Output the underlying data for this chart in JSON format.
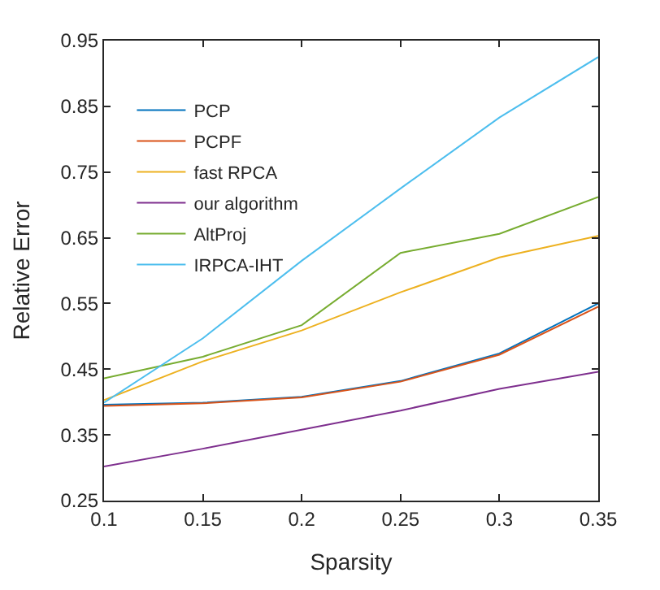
{
  "chart_data": {
    "type": "line",
    "xlabel": "Sparsity",
    "ylabel": "Relative Error",
    "x": [
      0.1,
      0.15,
      0.2,
      0.25,
      0.3,
      0.35
    ],
    "xlim": [
      0.1,
      0.35
    ],
    "xticks": [
      0.1,
      0.15,
      0.2,
      0.25,
      0.3,
      0.35
    ],
    "ylim": [
      0.25,
      0.95
    ],
    "yticks": [
      0.25,
      0.35,
      0.45,
      0.55,
      0.65,
      0.75,
      0.85,
      0.95
    ],
    "legend": "top left",
    "marker": "none",
    "line_style": "solid",
    "series": [
      {
        "name": "PCP",
        "color": "#0072bd",
        "values": [
          0.396,
          0.399,
          0.408,
          0.432,
          0.474,
          0.55
        ]
      },
      {
        "name": "PCPF",
        "color": "#d95319",
        "values": [
          0.394,
          0.398,
          0.407,
          0.431,
          0.472,
          0.545
        ]
      },
      {
        "name": "fast RPCA",
        "color": "#edb120",
        "values": [
          0.403,
          0.462,
          0.509,
          0.567,
          0.62,
          0.653
        ]
      },
      {
        "name": "our algorithm",
        "color": "#7e2f8e",
        "values": [
          0.302,
          0.329,
          0.358,
          0.387,
          0.42,
          0.446
        ]
      },
      {
        "name": "AltProj",
        "color": "#77ac30",
        "values": [
          0.436,
          0.469,
          0.517,
          0.627,
          0.656,
          0.712
        ]
      },
      {
        "name": "IRPCA-IHT",
        "color": "#4dbeee",
        "values": [
          0.399,
          0.497,
          0.615,
          0.725,
          0.833,
          0.925
        ]
      }
    ]
  }
}
